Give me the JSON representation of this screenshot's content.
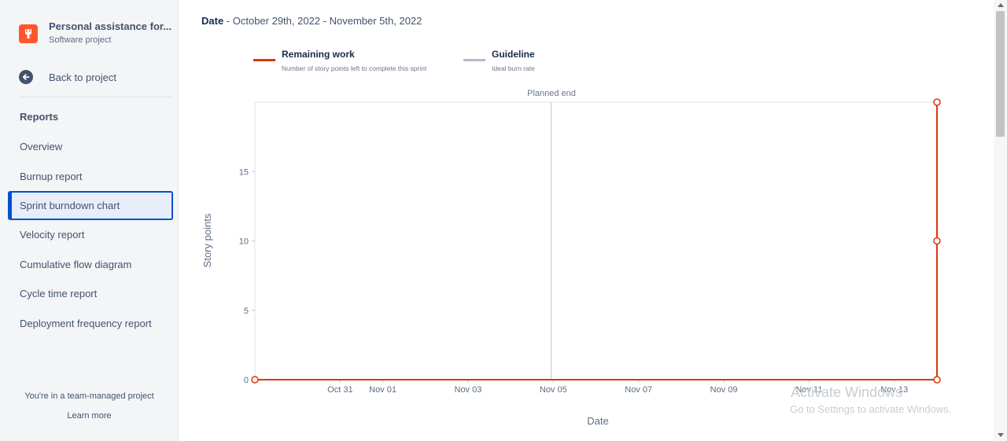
{
  "sidebar": {
    "project_name": "Personal assistance for...",
    "project_type": "Software project",
    "project_icon": "wrench-icon",
    "back_label": "Back to project",
    "section_title": "Reports",
    "items": [
      {
        "label": "Overview",
        "name": "overview"
      },
      {
        "label": "Burnup report",
        "name": "burnup-report"
      },
      {
        "label": "Sprint burndown chart",
        "name": "sprint-burndown-chart",
        "active": true
      },
      {
        "label": "Velocity report",
        "name": "velocity-report"
      },
      {
        "label": "Cumulative flow diagram",
        "name": "cumulative-flow-diagram"
      },
      {
        "label": "Cycle time report",
        "name": "cycle-time-report"
      },
      {
        "label": "Deployment frequency report",
        "name": "deployment-frequency-report"
      }
    ],
    "team_note": "You're in a team-managed project",
    "learn_more": "Learn more"
  },
  "header": {
    "date_label": "Date",
    "date_range": " - October 29th, 2022 - November 5th, 2022"
  },
  "legend": {
    "remaining_title": "Remaining work",
    "remaining_sub": "Number of story points left to complete this sprint",
    "guideline_title": "Guideline",
    "guideline_sub": "Ideal burn rate"
  },
  "colors": {
    "remaining": "#de350b",
    "guideline": "#b3bac5",
    "accent": "#0052cc"
  },
  "chart_data": {
    "type": "line",
    "ylabel": "Story points",
    "xlabel": "Date",
    "annotation": "Planned end",
    "ylim": [
      0,
      20
    ],
    "yticks": [
      0,
      5,
      10,
      15
    ],
    "x_ticks": [
      "Oct 31",
      "Nov 01",
      "Nov 03",
      "Nov 05",
      "Nov 07",
      "Nov 09",
      "Nov 11",
      "Nov 13"
    ],
    "series": [
      {
        "name": "Remaining work",
        "points": [
          {
            "x": "Oct 29",
            "y": 0
          },
          {
            "x": "Nov 14",
            "y": 0
          },
          {
            "x": "Nov 14",
            "y": 10
          },
          {
            "x": "Nov 14",
            "y": 20
          }
        ]
      }
    ]
  },
  "watermark": {
    "line1": "Activate Windows",
    "line2": "Go to Settings to activate Windows."
  }
}
